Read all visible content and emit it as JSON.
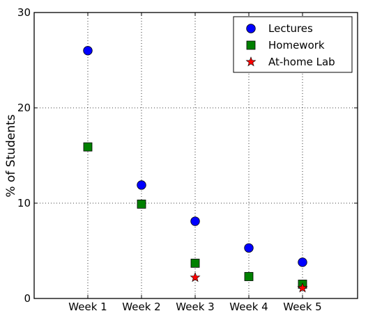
{
  "chart_data": {
    "type": "scatter",
    "categories": [
      "Week 1",
      "Week 2",
      "Week 3",
      "Week 4",
      "Week 5"
    ],
    "ylabel": "% of Students",
    "ylim": [
      0,
      30
    ],
    "yticks": [
      0,
      10,
      20,
      30
    ],
    "grid": true,
    "legend_position": "top-right",
    "series": [
      {
        "name": "Lectures",
        "marker": "circle",
        "color": "#0000ff",
        "values": [
          26.0,
          11.9,
          8.1,
          5.3,
          3.8
        ]
      },
      {
        "name": "Homework",
        "marker": "square",
        "color": "#008000",
        "values": [
          15.9,
          9.9,
          3.7,
          2.3,
          1.5
        ]
      },
      {
        "name": "At-home Lab",
        "marker": "star",
        "color": "#ff0000",
        "values": [
          null,
          null,
          2.2,
          null,
          1.1
        ]
      }
    ]
  }
}
